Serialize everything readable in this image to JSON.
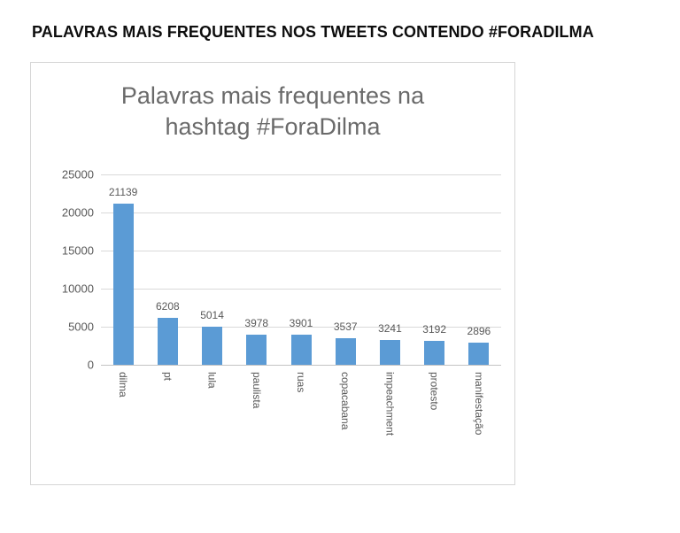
{
  "header": {
    "title": "PALAVRAS MAIS FREQUENTES NOS TWEETS CONTENDO #FORADILMA"
  },
  "chart_data": {
    "type": "bar",
    "title": "Palavras mais frequentes na hashtag #ForaDilma",
    "categories": [
      "dilma",
      "pt",
      "lula",
      "paulista",
      "ruas",
      "copacabana",
      "impeachment",
      "protesto",
      "manifestação"
    ],
    "values": [
      21139,
      6208,
      5014,
      3978,
      3901,
      3537,
      3241,
      3192,
      2896
    ],
    "data_labels": [
      "21139",
      "6208",
      "5014",
      "3978",
      "3901",
      "3537",
      "3241",
      "3192",
      "2896"
    ],
    "y_ticks": [
      0,
      5000,
      10000,
      15000,
      20000,
      25000
    ],
    "ylim": [
      0,
      25000
    ],
    "xlabel": "",
    "ylabel": "",
    "grid": true,
    "legend": false,
    "colors": {
      "bar": "#5b9bd5",
      "grid": "#d9d9d9",
      "axis_text": "#595959",
      "title_text": "#6a6a6a",
      "header_text": "#0d0d0d"
    }
  }
}
